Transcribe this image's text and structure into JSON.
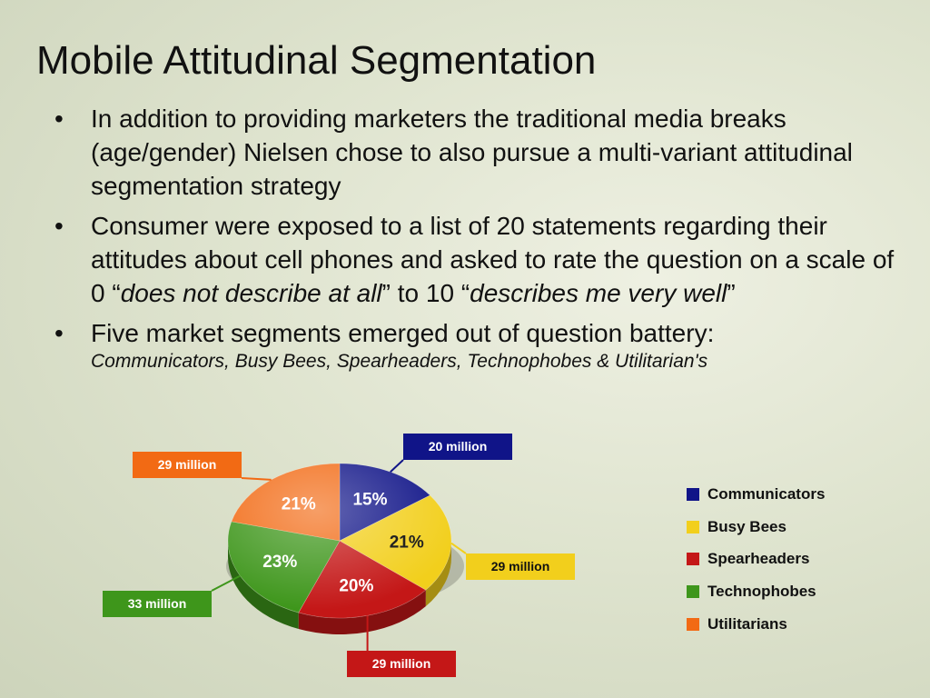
{
  "title": "Mobile Attitudinal Segmentation",
  "bullets": {
    "b1": "In addition to providing marketers the traditional media breaks (age/gender) Nielsen chose to also pursue a multi-variant attitudinal segmentation strategy",
    "b2_pre": "Consumer were exposed to a list of 20 statements regarding their attitudes about cell phones and asked to rate the question on a scale of 0 “",
    "b2_em1": "does not describe at all",
    "b2_mid": "” to 10 “",
    "b2_em2": "describes me very well",
    "b2_end": "”",
    "b3": "Five market segments emerged out of question battery:",
    "b3_sub": "Communicators, Busy Bees, Spearheaders, Technophobes & Utilitarian's"
  },
  "chart_data": {
    "type": "pie",
    "categories": [
      "Communicators",
      "Busy Bees",
      "Spearheaders",
      "Technophobes",
      "Utilitarians"
    ],
    "values": [
      15,
      21,
      20,
      23,
      21
    ],
    "value_labels": [
      "15%",
      "21%",
      "20%",
      "23%",
      "21%"
    ],
    "callouts": [
      "20 million",
      "29 million",
      "29 million",
      "33 million",
      "29 million"
    ],
    "colors": [
      "#101488",
      "#f2cf1c",
      "#c41717",
      "#3e961b",
      "#f26a14"
    ],
    "legend": "right"
  }
}
